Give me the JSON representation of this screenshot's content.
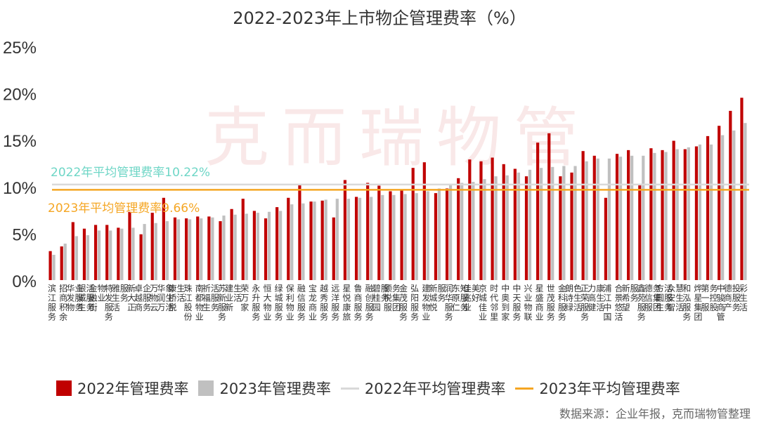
{
  "title": "2022-2023年上市物企管理费率（%）",
  "source": "数据来源：企业年报，克而瑞物管整理",
  "watermark": "克而瑞物管",
  "colors": {
    "series2022": "#c00000",
    "series2023": "#c0c0c0",
    "avg2022": "#d9d9d9",
    "avg2023": "#f5a623",
    "avg2022_text": "#6ed6c6",
    "avg2023_text": "#f5a623"
  },
  "legend": {
    "item1": "2022年管理费率",
    "item2": "2023年管理费率",
    "item3": "2022年平均管理费率",
    "item4": "2023年平均管理费率"
  },
  "chart_data": {
    "type": "bar",
    "ylim": [
      0,
      25
    ],
    "yticks": [
      "0%",
      "5%",
      "10%",
      "15%",
      "20%",
      "25%"
    ],
    "categories": [
      "滨江服务",
      "招商积余",
      "华发物业服务",
      "银城生活服务",
      "金融街物业",
      "特发服务",
      "雅生活服务",
      "新大正",
      "卓越商企服务",
      "万物云",
      "华润万象生活",
      "康桥悦生活",
      "珠江股份",
      "南都物业",
      "祈福生活服务",
      "苏新服务",
      "建业新生活",
      "荣万家",
      "永升服务",
      "恒大物业",
      "绿城服务",
      "保利物业",
      "融信服务",
      "宝龙商业",
      "越秀服务",
      "远洋服务",
      "星悦康旅",
      "鲁商服务",
      "融创服务",
      "碧桂园服务",
      "领悦服务集团",
      "金茂服务",
      "弘阳服务",
      "建发物业",
      "新城悦服务",
      "润华服务",
      "东原仁知服务",
      "佳兆业美好",
      "京城佳业",
      "时代邻里",
      "中奥到家",
      "中天服务",
      "兴业物联",
      "星盛商业",
      "世茂服务",
      "金科服务",
      "朗诗绿色生活",
      "正荣服务",
      "力高健康生活",
      "浦江中国",
      "合景悠活",
      "新希望服务",
      "鑫苑服务",
      "德信服务集团",
      "方圆生活服务",
      "众安智慧生活",
      "和泓服务",
      "烨星集团",
      "第一服务控股",
      "中骏商管",
      "德商产投服务",
      "彩生活"
    ],
    "series": [
      {
        "name": "2022年管理费率",
        "values": [
          3.1,
          3.6,
          6.2,
          5.5,
          5.9,
          5.9,
          5.6,
          7.3,
          4.9,
          7.2,
          8.8,
          6.7,
          6.6,
          6.8,
          6.8,
          6.3,
          7.6,
          8.7,
          7.4,
          6.6,
          7.8,
          8.8,
          10.2,
          8.4,
          8.5,
          6.7,
          10.7,
          8.9,
          10.4,
          10.1,
          9.5,
          9.7,
          12.0,
          12.6,
          9.3,
          9.8,
          10.9,
          12.9,
          12.7,
          13.1,
          12.4,
          11.9,
          11.1,
          14.7,
          15.7,
          11.1,
          11.5,
          13.8,
          13.3,
          8.8,
          13.5,
          13.9,
          10.2,
          14.1,
          13.9,
          14.9,
          14.0,
          14.3,
          15.4,
          16.5,
          18.1,
          19.5
        ]
      },
      {
        "name": "2023年管理费率",
        "values": [
          2.7,
          3.9,
          4.7,
          4.8,
          5.3,
          5.3,
          5.5,
          5.6,
          6.0,
          6.1,
          6.3,
          6.5,
          6.5,
          6.6,
          6.7,
          6.9,
          7.0,
          7.1,
          7.2,
          7.3,
          7.4,
          8.1,
          8.2,
          8.4,
          8.6,
          8.7,
          8.7,
          8.8,
          8.9,
          9.1,
          9.1,
          9.2,
          9.3,
          9.5,
          9.8,
          10.2,
          10.4,
          10.5,
          10.8,
          11.1,
          11.2,
          11.5,
          11.8,
          12.0,
          12.1,
          12.2,
          12.2,
          12.7,
          13.0,
          13.0,
          13.2,
          13.3,
          13.3,
          13.6,
          13.7,
          14.0,
          14.2,
          14.5,
          14.5,
          15.5,
          16.0,
          16.8
        ]
      }
    ],
    "avg2022": {
      "label": "2022年平均管理费率10.22%",
      "value": 10.22
    },
    "avg2023": {
      "label": "2023年平均管理费率9.66%",
      "value": 9.66
    }
  }
}
